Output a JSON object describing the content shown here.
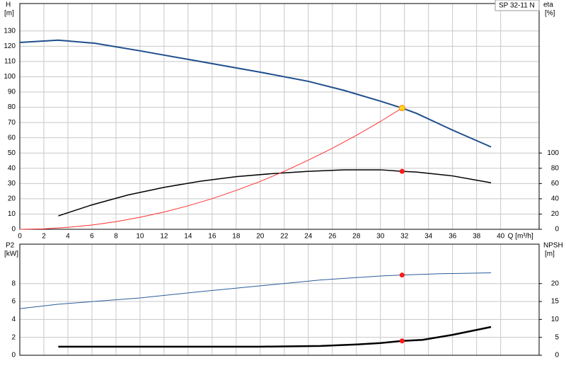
{
  "chart_data": [
    {
      "type": "line",
      "title": "SP 32-11 N",
      "ylabel": "H",
      "yunit": "[m]",
      "y2label": "eta",
      "y2unit": "[%]",
      "xlabel": "Q [m³/h]",
      "xlim": [
        0,
        43.2
      ],
      "xticks": [
        0,
        2,
        4,
        6,
        8,
        10,
        12,
        14,
        16,
        18,
        20,
        22,
        24,
        26,
        28,
        30,
        32,
        34,
        36,
        38,
        40
      ],
      "ylim": [
        0,
        148
      ],
      "yticks": [
        0,
        10,
        20,
        30,
        40,
        50,
        60,
        70,
        80,
        90,
        100,
        110,
        120,
        130
      ],
      "y2lim": [
        0,
        296
      ],
      "y2ticks": [
        0,
        20,
        40,
        60,
        80,
        100
      ],
      "grid": true,
      "series": [
        {
          "color": "#1f4e8c",
          "line_width": 2,
          "x": [
            0,
            3.2,
            6.2,
            10,
            15,
            20,
            24,
            27,
            30,
            31.8,
            33,
            36,
            39.2
          ],
          "values": [
            122.5,
            124,
            122,
            117,
            110,
            103,
            97,
            91,
            84,
            79.5,
            76,
            65,
            54
          ]
        },
        {
          "color": "#000000",
          "line_width": 1.5,
          "axis": "y2",
          "x": [
            3.2,
            6,
            9,
            12,
            15,
            18,
            21,
            24,
            27,
            30,
            31.8,
            33,
            36,
            39.2
          ],
          "values": [
            17.6,
            32,
            45,
            55,
            63,
            69,
            73,
            76,
            78,
            78,
            76,
            75,
            70,
            61
          ]
        },
        {
          "color": "#ff3030",
          "line_width": 1,
          "x": [
            0,
            2,
            4,
            6,
            8,
            10,
            12,
            14,
            16,
            18,
            20,
            22,
            24,
            26,
            28,
            30,
            31.8
          ],
          "values": [
            0,
            0.3,
            1.3,
            2.8,
            5,
            7.9,
            11.3,
            15.4,
            20.1,
            25.5,
            31.4,
            38,
            45.3,
            53.1,
            61.6,
            70.7,
            79.5
          ]
        }
      ],
      "duty_point": {
        "x": 31.8,
        "values": [
          79.5,
          76
        ]
      }
    },
    {
      "type": "line",
      "ylabel": "P2",
      "yunit": "[kW]",
      "y2label": "NPSH",
      "y2unit": "[m]",
      "xlim": [
        0,
        43.2
      ],
      "ylim": [
        0,
        12.4
      ],
      "yticks": [
        0,
        2,
        4,
        6,
        8
      ],
      "y2lim": [
        0,
        31
      ],
      "y2ticks": [
        0,
        5,
        10,
        15,
        20
      ],
      "grid": true,
      "series": [
        {
          "color": "#2a5d9c",
          "line_width": 1,
          "x": [
            0,
            3.2,
            10,
            15,
            20,
            25,
            30,
            31.8,
            35,
            39.2
          ],
          "values": [
            5.2,
            5.7,
            6.4,
            7.1,
            7.75,
            8.4,
            8.85,
            8.95,
            9.1,
            9.2
          ]
        },
        {
          "color": "#000000",
          "line_width": 2.5,
          "axis": "y2",
          "x": [
            3.2,
            10,
            20,
            25,
            28,
            30,
            31.8,
            33.5,
            36,
            39.2
          ],
          "values": [
            2.4,
            2.4,
            2.4,
            2.6,
            3.0,
            3.4,
            4.0,
            4.3,
            5.7,
            7.9
          ]
        }
      ],
      "duty_point": {
        "x": 31.8,
        "values": [
          8.95,
          4.0
        ]
      }
    }
  ]
}
